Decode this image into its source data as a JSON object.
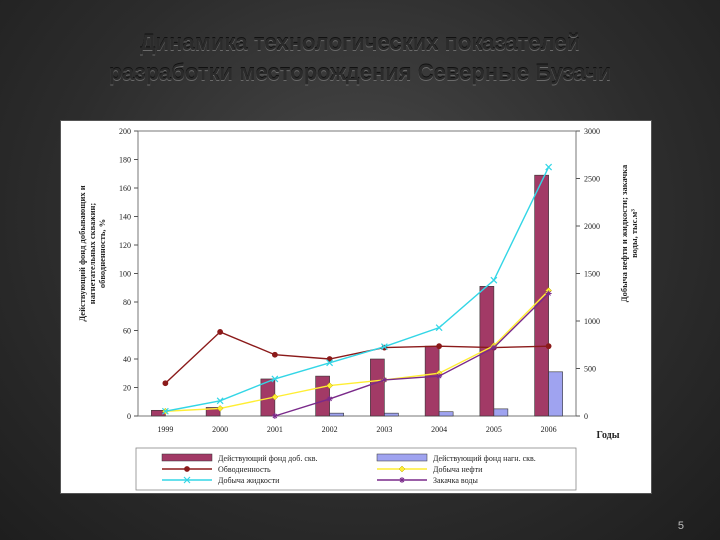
{
  "slide": {
    "title_line1": "Динамика технологических показателей",
    "title_line2": "разработки месторождения Северные Бузачи",
    "page_number": "5"
  },
  "colors": {
    "fond_dob": "#a23a66",
    "fond_nagn": "#9fa3f0",
    "obvodnennost": "#8b1a1a",
    "dobycha_nefti": "#ffee33",
    "dobycha_zhidkosti": "#33d6e6",
    "zakachka_vody": "#7a2a8a",
    "plot_bg": "#ffffff",
    "frame_bg": "#ffffff"
  },
  "chart_data": {
    "type": "bar",
    "categories": [
      "1999",
      "2000",
      "2001",
      "2002",
      "2003",
      "2004",
      "2005",
      "2006"
    ],
    "xlabel": "Годы",
    "ylabel_left": "Действующий фонд добывающих и нагнетательных скважин; обводненность, %",
    "ylabel_right": "Добыча нефти и жидкости; закачка воды, тыс.м3",
    "ylim_left": [
      0,
      200
    ],
    "ylim_right": [
      0,
      3000
    ],
    "yticks_left": [
      "0",
      "20",
      "40",
      "60",
      "80",
      "100",
      "120",
      "140",
      "160",
      "180",
      "200"
    ],
    "yticks_right": [
      "0",
      "500",
      "1000",
      "1500",
      "2000",
      "2500",
      "3000"
    ],
    "grid": false,
    "legend_position": "bottom",
    "series": [
      {
        "name": "Действующий фонд доб. скв.",
        "kind": "bar",
        "axis": "left",
        "color_key": "fond_dob",
        "values": [
          4,
          6,
          26,
          28,
          40,
          49,
          91,
          169
        ]
      },
      {
        "name": "Действующий фонд нагн. скв.",
        "kind": "bar",
        "axis": "left",
        "color_key": "fond_nagn",
        "values": [
          0,
          0,
          0,
          2,
          2,
          3,
          5,
          31
        ]
      },
      {
        "name": "Обводненность",
        "kind": "line",
        "axis": "left",
        "color_key": "obvodnennost",
        "marker": "circle",
        "values": [
          23,
          59,
          43,
          40,
          48,
          49,
          48,
          49
        ]
      },
      {
        "name": "Добыча нефти",
        "kind": "line",
        "axis": "right",
        "color_key": "dobycha_nefti",
        "marker": "diamond",
        "values": [
          50,
          80,
          200,
          320,
          380,
          450,
          740,
          1320
        ]
      },
      {
        "name": "Добыча жидкости",
        "kind": "line",
        "axis": "right",
        "color_key": "dobycha_zhidkosti",
        "marker": "x",
        "values": [
          50,
          160,
          390,
          560,
          730,
          930,
          1430,
          2620
        ]
      },
      {
        "name": "Закачка воды",
        "kind": "line",
        "axis": "right",
        "color_key": "zakachka_vody",
        "marker": "star",
        "values": [
          0,
          0,
          0,
          180,
          380,
          420,
          720,
          1290
        ]
      }
    ]
  }
}
